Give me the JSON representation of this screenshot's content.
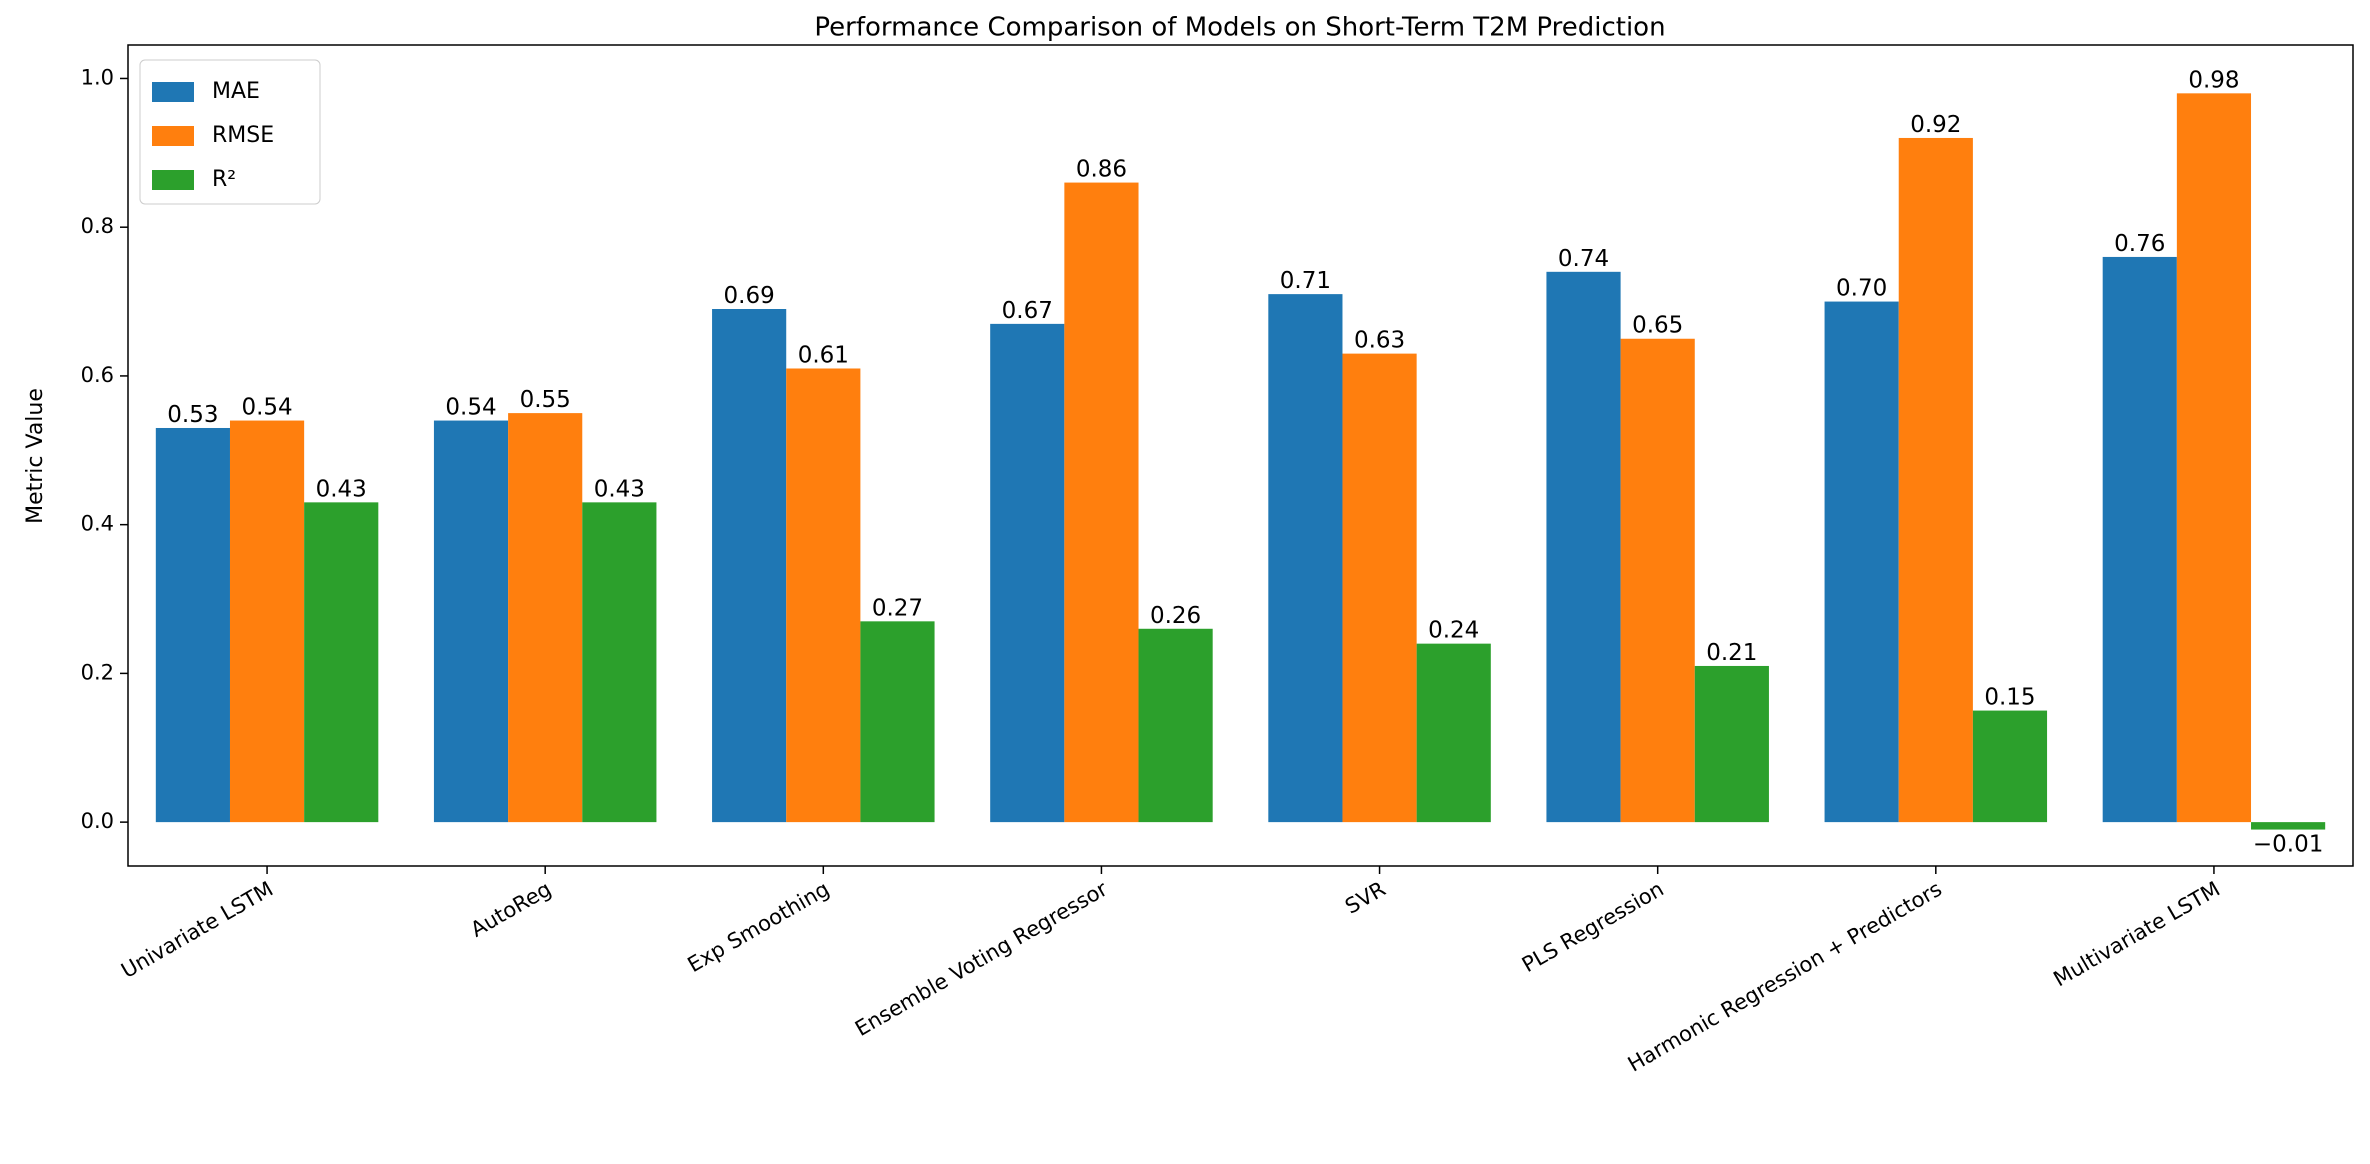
{
  "chart_data": {
    "type": "grouped-bar",
    "title": "Performance Comparison of Models on Short-Term T2M Prediction",
    "y_label": "Metric Value",
    "categories": [
      "Univariate LSTM",
      "AutoReg",
      "Exp Smoothing",
      "Ensemble Voting Regressor",
      "SVR",
      "PLS Regression",
      "Harmonic Regression + Predictors",
      "Multivariate LSTM"
    ],
    "series": [
      {
        "name": "MAE",
        "color": "#1f77b4",
        "values": [
          0.53,
          0.54,
          0.69,
          0.67,
          0.71,
          0.74,
          0.7,
          0.76
        ],
        "value_labels": [
          "0.53",
          "0.54",
          "0.69",
          "0.67",
          "0.71",
          "0.74",
          "0.70",
          "0.76"
        ]
      },
      {
        "name": "RMSE",
        "color": "#ff7f0e",
        "values": [
          0.54,
          0.55,
          0.61,
          0.86,
          0.63,
          0.65,
          0.92,
          0.98
        ],
        "value_labels": [
          "0.54",
          "0.55",
          "0.61",
          "0.86",
          "0.63",
          "0.65",
          "0.92",
          "0.98"
        ]
      },
      {
        "name": "R²",
        "color": "#2ca02c",
        "values": [
          0.43,
          0.43,
          0.27,
          0.26,
          0.24,
          0.21,
          0.15,
          -0.01
        ],
        "value_labels": [
          "0.43",
          "0.43",
          "0.27",
          "0.26",
          "0.24",
          "0.21",
          "0.15",
          "−0.01"
        ]
      }
    ],
    "ylim": [
      -0.059,
      1.045
    ],
    "yticks": [
      {
        "value": 0,
        "label": "0.0"
      },
      {
        "value": 0.2,
        "label": "0.2"
      },
      {
        "value": 0.4,
        "label": "0.4"
      },
      {
        "value": 0.6,
        "label": "0.6"
      },
      {
        "value": 0.8,
        "label": "0.8"
      },
      {
        "value": 1.0,
        "label": "1.0"
      }
    ],
    "legend": "upper left",
    "grid": false
  }
}
